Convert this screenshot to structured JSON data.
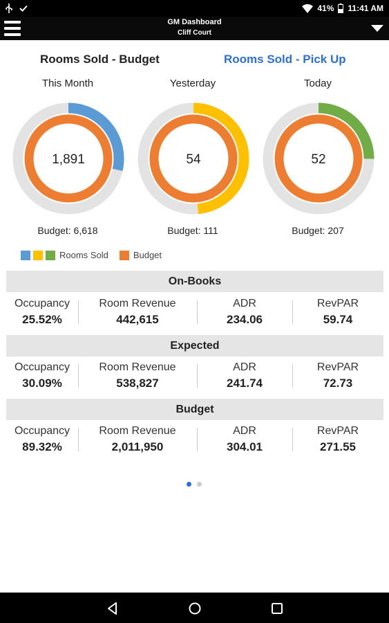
{
  "status": {
    "battery": "41%",
    "time": "11:41 AM"
  },
  "appbar": {
    "title": "GM Dashboard",
    "subtitle": "Cliff Court"
  },
  "tabs": {
    "budget": "Rooms Sold - Budget",
    "pickup": "Rooms Sold - Pick Up"
  },
  "gauges": [
    {
      "label": "This Month",
      "value": "1,891",
      "budget_text": "Budget: 6,618",
      "sold_fraction": 0.286,
      "color": "#5b9bd5"
    },
    {
      "label": "Yesterday",
      "value": "54",
      "budget_text": "Budget: 111",
      "sold_fraction": 0.486,
      "color": "#ffc000"
    },
    {
      "label": "Today",
      "value": "52",
      "budget_text": "Budget: 207",
      "sold_fraction": 0.251,
      "color": "#70ad47"
    }
  ],
  "colors": {
    "budget": "#ed7d31",
    "track": "#e3e3e3",
    "accent": "#2a6fdb"
  },
  "legend": {
    "rooms_sold": "Rooms Sold",
    "budget": "Budget"
  },
  "sections": [
    {
      "title": "On-Books",
      "occupancy": "25.52%",
      "room_revenue": "442,615",
      "adr": "234.06",
      "revpar": "59.74"
    },
    {
      "title": "Expected",
      "occupancy": "30.09%",
      "room_revenue": "538,827",
      "adr": "241.74",
      "revpar": "72.73"
    },
    {
      "title": "Budget",
      "occupancy": "89.32%",
      "room_revenue": "2,011,950",
      "adr": "304.01",
      "revpar": "271.55"
    }
  ],
  "stat_labels": {
    "occupancy": "Occupancy",
    "room_revenue": "Room Revenue",
    "adr": "ADR",
    "revpar": "RevPAR"
  },
  "pager": {
    "pages": 2,
    "current": 1
  }
}
